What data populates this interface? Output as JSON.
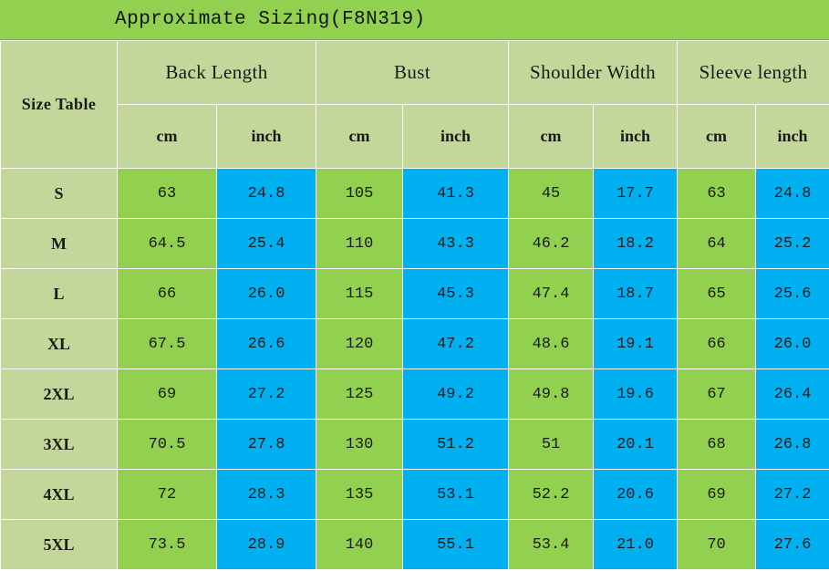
{
  "title": "Approximate Sizing(F8N319)",
  "header": {
    "size_table_label": "Size Table",
    "groups": [
      "Back Length",
      "Bust",
      "Shoulder Width",
      "Sleeve length"
    ],
    "units": [
      "cm",
      "inch",
      "cm",
      "inch",
      "cm",
      "inch",
      "cm",
      "inch"
    ]
  },
  "colors": {
    "cm_cell": "#92d050",
    "inch_cell": "#00b0f0",
    "header_bg": "#c4d79b",
    "title_bg": "#92d050"
  },
  "rows": [
    {
      "size": "S",
      "values": [
        "63",
        "24.8",
        "105",
        "41.3",
        "45",
        "17.7",
        "63",
        "24.8"
      ]
    },
    {
      "size": "M",
      "values": [
        "64.5",
        "25.4",
        "110",
        "43.3",
        "46.2",
        "18.2",
        "64",
        "25.2"
      ]
    },
    {
      "size": "L",
      "values": [
        "66",
        "26.0",
        "115",
        "45.3",
        "47.4",
        "18.7",
        "65",
        "25.6"
      ]
    },
    {
      "size": "XL",
      "values": [
        "67.5",
        "26.6",
        "120",
        "47.2",
        "48.6",
        "19.1",
        "66",
        "26.0"
      ]
    },
    {
      "size": "2XL",
      "values": [
        "69",
        "27.2",
        "125",
        "49.2",
        "49.8",
        "19.6",
        "67",
        "26.4"
      ]
    },
    {
      "size": "3XL",
      "values": [
        "70.5",
        "27.8",
        "130",
        "51.2",
        "51",
        "20.1",
        "68",
        "26.8"
      ]
    },
    {
      "size": "4XL",
      "values": [
        "72",
        "28.3",
        "135",
        "53.1",
        "52.2",
        "20.6",
        "69",
        "27.2"
      ]
    },
    {
      "size": "5XL",
      "values": [
        "73.5",
        "28.9",
        "140",
        "55.1",
        "53.4",
        "21.0",
        "70",
        "27.6"
      ]
    }
  ]
}
